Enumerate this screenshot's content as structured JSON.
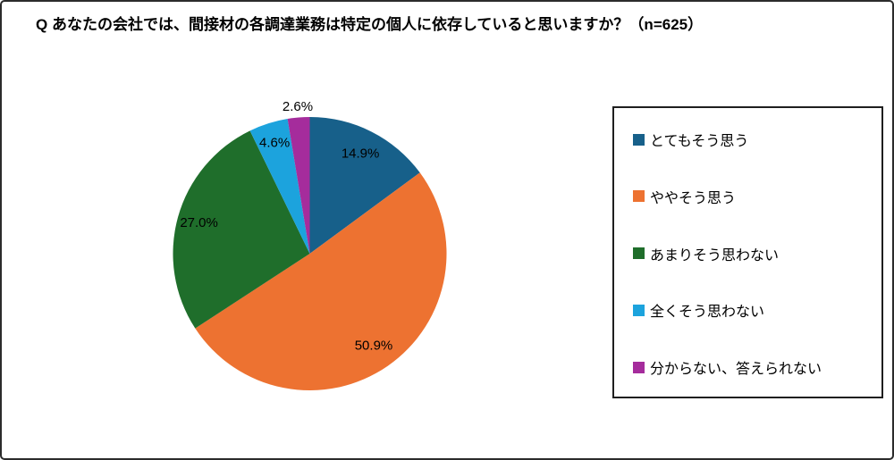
{
  "title": "Q あなたの会社では、間接材の各調達業務は特定の個人に依存していると思いますか？（n=625）",
  "chart_data": {
    "type": "pie",
    "title": "間接材の各調達業務は特定の個人に依存していると思いますか",
    "sample_size": 625,
    "categories": [
      "とてもそう思う",
      "ややそう思う",
      "あまりそう思わない",
      "全くそう思わない",
      "分からない、答えられない"
    ],
    "values": [
      14.9,
      50.9,
      27.0,
      4.6,
      2.6
    ],
    "labels": [
      "14.9%",
      "50.9%",
      "27.0%",
      "4.6%",
      "2.6%"
    ],
    "colors": [
      "#17608a",
      "#ed7231",
      "#1f6e2b",
      "#1ca3dd",
      "#a52c9c"
    ],
    "start_angle_deg": -90,
    "direction": "clockwise",
    "legend_position": "right",
    "label_color": "#000000"
  }
}
